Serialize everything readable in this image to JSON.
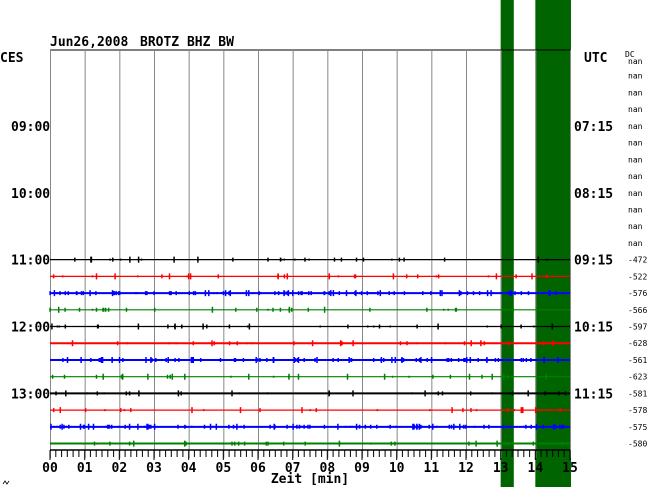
{
  "chart_data": {
    "type": "line",
    "title": "Jun26,2008   BROTZ BHZ BW",
    "date": "Jun26,2008",
    "station": "BROTZ BHZ BW",
    "left_timezone": "CES",
    "right_timezone": "UTC",
    "dc_header": "DC",
    "xlabel": "Zeit [min]",
    "xlim": [
      0,
      15
    ],
    "x_ticks": [
      "00",
      "01",
      "02",
      "03",
      "04",
      "05",
      "06",
      "07",
      "08",
      "09",
      "10",
      "11",
      "12",
      "13",
      "14",
      "15"
    ],
    "left_hour_labels": [
      {
        "row": 4,
        "label": "09:00"
      },
      {
        "row": 8,
        "label": "10:00"
      },
      {
        "row": 12,
        "label": "11:00"
      },
      {
        "row": 16,
        "label": "12:00"
      },
      {
        "row": 20,
        "label": "13:00"
      }
    ],
    "right_hour_labels": [
      {
        "row": 4,
        "label": "07:15"
      },
      {
        "row": 8,
        "label": "08:15"
      },
      {
        "row": 12,
        "label": "09:15"
      },
      {
        "row": 16,
        "label": "10:15"
      },
      {
        "row": 20,
        "label": "11:15"
      }
    ],
    "rows": [
      {
        "dc": "nan",
        "color": null
      },
      {
        "dc": "nan",
        "color": null
      },
      {
        "dc": "nan",
        "color": null
      },
      {
        "dc": "nan",
        "color": null
      },
      {
        "dc": "nan",
        "color": null
      },
      {
        "dc": "nan",
        "color": null
      },
      {
        "dc": "nan",
        "color": null
      },
      {
        "dc": "nan",
        "color": null
      },
      {
        "dc": "nan",
        "color": null
      },
      {
        "dc": "nan",
        "color": null
      },
      {
        "dc": "nan",
        "color": null
      },
      {
        "dc": "nan",
        "color": null
      },
      {
        "dc": "-472",
        "color": "#000000"
      },
      {
        "dc": "-522",
        "color": "#ff0000"
      },
      {
        "dc": "-576",
        "color": "#0000ff"
      },
      {
        "dc": "-566",
        "color": "#008000"
      },
      {
        "dc": "-597",
        "color": "#000000"
      },
      {
        "dc": "-628",
        "color": "#ff0000"
      },
      {
        "dc": "-561",
        "color": "#0000ff"
      },
      {
        "dc": "-623",
        "color": "#008000"
      },
      {
        "dc": "-581",
        "color": "#000000"
      },
      {
        "dc": "-578",
        "color": "#ff0000"
      },
      {
        "dc": "-575",
        "color": "#0000ff"
      },
      {
        "dc": "-580",
        "color": "#008000"
      }
    ],
    "highlight_bands_min": [
      [
        13.0,
        13.35
      ],
      [
        14.0,
        15.0
      ]
    ],
    "highlight_color": "#006400"
  }
}
